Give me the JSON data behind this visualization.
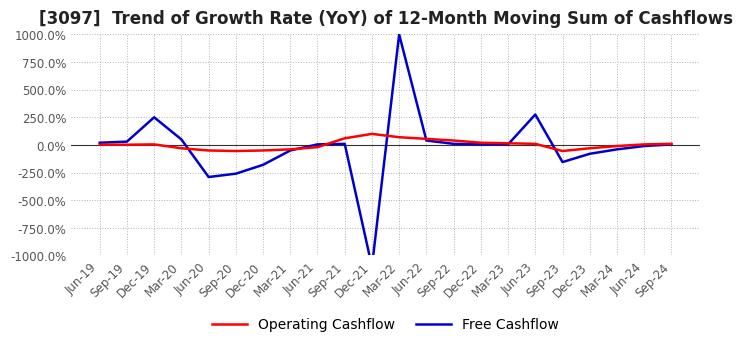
{
  "title": "[3097]  Trend of Growth Rate (YoY) of 12-Month Moving Sum of Cashflows",
  "ylim": [
    -1000,
    1000
  ],
  "yticks": [
    -1000,
    -750,
    -500,
    -250,
    0,
    250,
    500,
    750,
    1000
  ],
  "ytick_labels": [
    "-1000.0%",
    "-750.0%",
    "-500.0%",
    "-250.0%",
    "0.0%",
    "250.0%",
    "500.0%",
    "750.0%",
    "1000.0%"
  ],
  "x_labels": [
    "Jun-19",
    "Sep-19",
    "Dec-19",
    "Mar-20",
    "Jun-20",
    "Sep-20",
    "Dec-20",
    "Mar-21",
    "Jun-21",
    "Sep-21",
    "Dec-21",
    "Mar-22",
    "Jun-22",
    "Sep-22",
    "Dec-22",
    "Mar-23",
    "Jun-23",
    "Sep-23",
    "Dec-23",
    "Mar-24",
    "Jun-24",
    "Sep-24"
  ],
  "operating_cashflow": [
    2,
    2,
    5,
    -30,
    -50,
    -55,
    -50,
    -40,
    -20,
    60,
    100,
    70,
    55,
    40,
    20,
    15,
    10,
    -55,
    -30,
    -10,
    5,
    10
  ],
  "free_cashflow": [
    20,
    30,
    250,
    50,
    -290,
    -260,
    -180,
    -50,
    5,
    10,
    -1100,
    1000,
    40,
    10,
    5,
    5,
    275,
    -155,
    -80,
    -40,
    -10,
    5
  ],
  "operating_color": "#FF0000",
  "free_color": "#0000CD",
  "background_color": "#FFFFFF",
  "grid_color": "#AAAAAA",
  "title_color": "#222222",
  "title_fontsize": 12,
  "tick_fontsize": 8.5,
  "legend_fontsize": 10
}
